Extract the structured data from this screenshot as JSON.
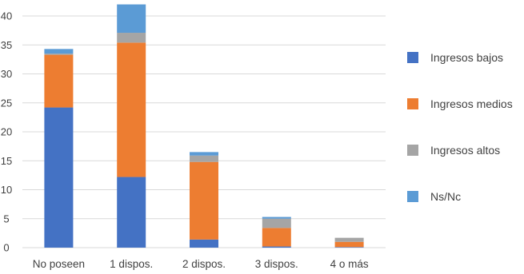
{
  "chart_data": {
    "type": "bar",
    "stacked": true,
    "title": "",
    "xlabel": "",
    "ylabel": "",
    "categories": [
      "No poseen",
      "1 dispos.",
      "2 dispos.",
      "3 dispos.",
      "4 o más"
    ],
    "series": [
      {
        "name": "Ingresos bajos",
        "color": "#4472C4",
        "values": [
          24.2,
          12.2,
          1.4,
          0.2,
          0.1
        ]
      },
      {
        "name": "Ingresos medios",
        "color": "#ED7D31",
        "values": [
          9.1,
          23.2,
          13.4,
          3.2,
          0.9
        ]
      },
      {
        "name": "Ingresos altos",
        "color": "#A5A5A5",
        "values": [
          0.2,
          1.7,
          1.1,
          1.6,
          0.7
        ]
      },
      {
        "name": "Ns/Nc",
        "color": "#5B9BD5",
        "values": [
          0.8,
          4.9,
          0.6,
          0.3,
          0.0
        ]
      }
    ],
    "ylim": [
      0,
      45
    ],
    "yticks": [
      0,
      5,
      10,
      15,
      20,
      25,
      30,
      35,
      40
    ],
    "grid": true,
    "legend": "right"
  }
}
